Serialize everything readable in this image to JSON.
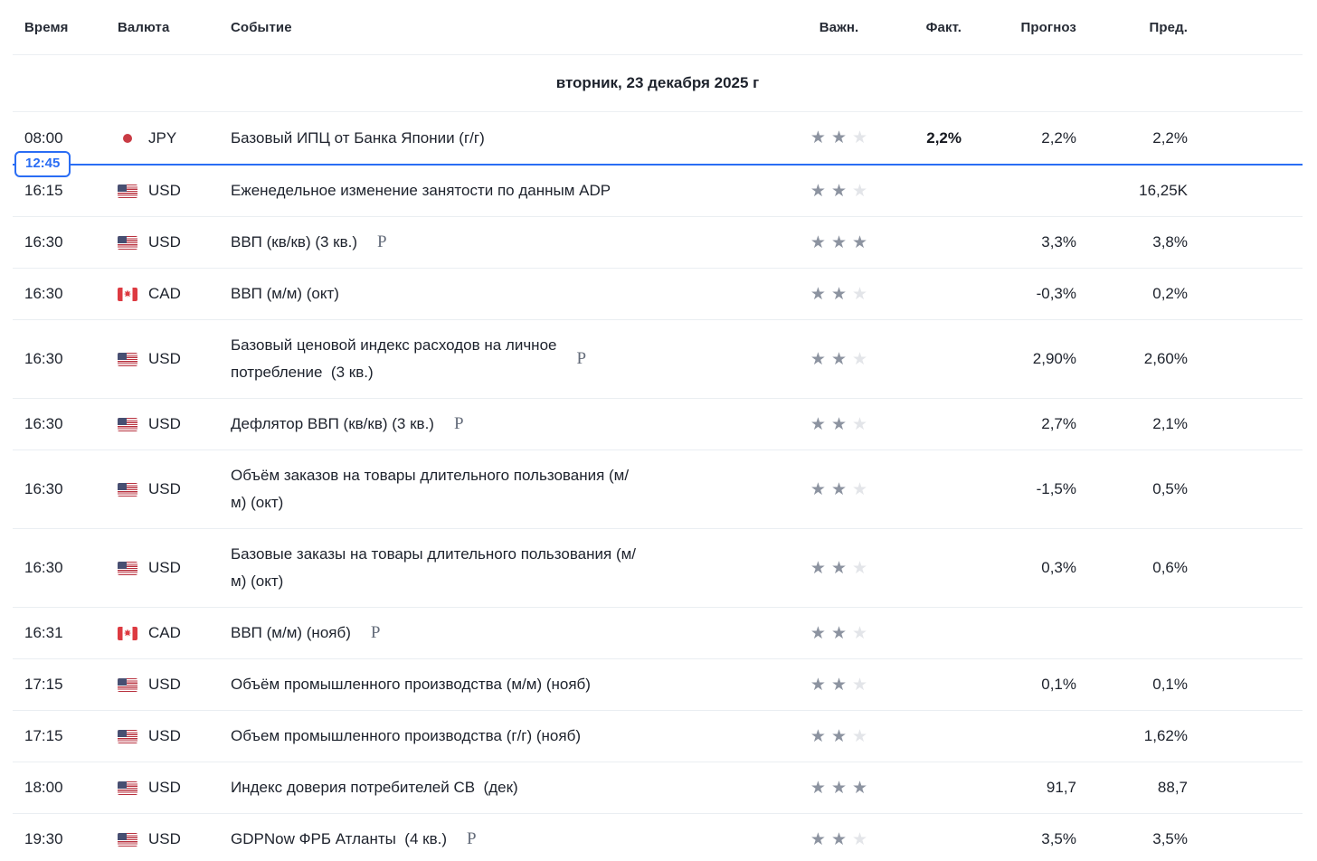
{
  "colors": {
    "accent_blue": "#2a6df4",
    "star_filled": "#8c93a0",
    "star_empty": "#e3e5e9",
    "row_divider": "#eaeef2",
    "text": "#1d222c"
  },
  "icons": {
    "star_glyph": "★",
    "preliminary_label": "P"
  },
  "header": {
    "time": "Время",
    "currency": "Валюта",
    "event": "Событие",
    "importance": "Важн.",
    "actual": "Факт.",
    "forecast": "Прогноз",
    "previous": "Пред."
  },
  "date_header": "вторник, 23 декабря 2025 г",
  "time_marker": {
    "label": "12:45",
    "after_row": 0
  },
  "importance_max": 3,
  "rows": [
    {
      "time": "08:00",
      "currency": "JPY",
      "flag": "jp",
      "event": "Базовый ИПЦ от Банка Японии (г/г)",
      "preliminary": false,
      "importance": 2,
      "fact": "2,2%",
      "forecast": "2,2%",
      "previous": "2,2%"
    },
    {
      "time": "16:15",
      "currency": "USD",
      "flag": "us",
      "event": "Еженедельное изменение занятости по данным ADP",
      "preliminary": false,
      "importance": 2,
      "fact": "",
      "forecast": "",
      "previous": "16,25K"
    },
    {
      "time": "16:30",
      "currency": "USD",
      "flag": "us",
      "event": "ВВП (кв/кв) (3 кв.)",
      "preliminary": true,
      "importance": 3,
      "fact": "",
      "forecast": "3,3%",
      "previous": "3,8%"
    },
    {
      "time": "16:30",
      "currency": "CAD",
      "flag": "ca",
      "event": "ВВП (м/м) (окт)",
      "preliminary": false,
      "importance": 2,
      "fact": "",
      "forecast": "-0,3%",
      "previous": "0,2%"
    },
    {
      "time": "16:30",
      "currency": "USD",
      "flag": "us",
      "event": "Базовый ценовой индекс расходов на личное\nпотребление  (3 кв.)",
      "preliminary": true,
      "importance": 2,
      "fact": "",
      "forecast": "2,90%",
      "previous": "2,60%"
    },
    {
      "time": "16:30",
      "currency": "USD",
      "flag": "us",
      "event": "Дефлятор ВВП (кв/кв) (3 кв.)",
      "preliminary": true,
      "importance": 2,
      "fact": "",
      "forecast": "2,7%",
      "previous": "2,1%"
    },
    {
      "time": "16:30",
      "currency": "USD",
      "flag": "us",
      "event": "Объём заказов на товары длительного пользования (м/\nм) (окт)",
      "preliminary": false,
      "importance": 2,
      "fact": "",
      "forecast": "-1,5%",
      "previous": "0,5%"
    },
    {
      "time": "16:30",
      "currency": "USD",
      "flag": "us",
      "event": "Базовые заказы на товары длительного пользования (м/\nм) (окт)",
      "preliminary": false,
      "importance": 2,
      "fact": "",
      "forecast": "0,3%",
      "previous": "0,6%"
    },
    {
      "time": "16:31",
      "currency": "CAD",
      "flag": "ca",
      "event": "ВВП (м/м) (нояб)",
      "preliminary": true,
      "importance": 2,
      "fact": "",
      "forecast": "",
      "previous": ""
    },
    {
      "time": "17:15",
      "currency": "USD",
      "flag": "us",
      "event": "Объём промышленного производства (м/м) (нояб)",
      "preliminary": false,
      "importance": 2,
      "fact": "",
      "forecast": "0,1%",
      "previous": "0,1%"
    },
    {
      "time": "17:15",
      "currency": "USD",
      "flag": "us",
      "event": "Объем промышленного производства (г/г) (нояб)",
      "preliminary": false,
      "importance": 2,
      "fact": "",
      "forecast": "",
      "previous": "1,62%"
    },
    {
      "time": "18:00",
      "currency": "USD",
      "flag": "us",
      "event": "Индекс доверия потребителей CB  (дек)",
      "preliminary": false,
      "importance": 3,
      "fact": "",
      "forecast": "91,7",
      "previous": "88,7"
    },
    {
      "time": "19:30",
      "currency": "USD",
      "flag": "us",
      "event": "GDPNow ФРБ Атланты  (4 кв.)",
      "preliminary": true,
      "importance": 2,
      "fact": "",
      "forecast": "3,5%",
      "previous": "3,5%"
    }
  ]
}
